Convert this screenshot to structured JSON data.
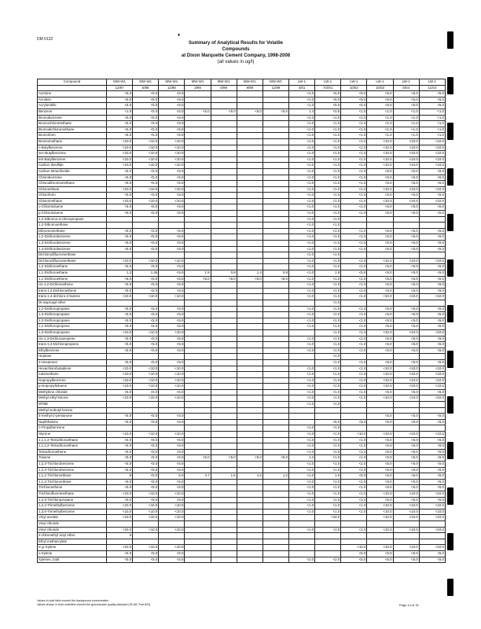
{
  "doc_id": "DM 0122",
  "title": {
    "line1": "Summary of Analytical Results for Volatile",
    "line2": "Compounds",
    "line3": "at Dixon Marquette Cement Company, 1998-2008",
    "line4": "(all values in ug/l)"
  },
  "table": {
    "headers": [
      [
        "Compound",
        "MW-W1",
        "MW-W1",
        "MW-W1",
        "MW-W1",
        "MW-W1",
        "MW-W1",
        "MW-W1",
        "LW-1",
        "LW-1",
        "LW-1",
        "LW-1",
        "LW-1",
        "LW-1"
      ],
      [
        "",
        "12/97",
        "5/98",
        "11/98",
        "3/99",
        "6/99",
        "9/99",
        "11/99",
        "4/01",
        "7/2/01",
        "10/02",
        "10/03",
        "6/04",
        "11/04"
      ]
    ],
    "rows": [
      [
        "Acetone",
        "<5.0",
        "<5.0",
        "<5.0",
        "",
        "",
        "",
        "",
        "<1.0",
        "<5.0",
        "<5.0",
        "<5.0",
        "<5.0",
        "<5.0"
      ],
      [
        "Acrolein",
        "<5.0",
        "<5.0",
        "<5.0",
        "",
        "",
        "",
        "",
        "<1.0",
        "<5.0",
        "<5.0",
        "<5.0",
        "<5.0",
        "<5.0"
      ],
      [
        "Acrylonitrile",
        "<5.0",
        "<5.0",
        "<5.0",
        "",
        "",
        "",
        "",
        "<1.0",
        "<5.0",
        "<5.0",
        "<5.0",
        "<5.0",
        "<5.0"
      ],
      [
        "Benzene",
        "<1.0",
        "<5.0",
        "<5.0",
        "<5.0",
        "<5.0",
        "<5.0",
        "<5.0",
        "1.4",
        "<0.5",
        "<1.0",
        "<1.0",
        "<1.0",
        "<1.0"
      ],
      [
        "Bromobenzene",
        "<5.0",
        "<5.0",
        "<5.0",
        "",
        "",
        "",
        "",
        "<1.0",
        "<1.0",
        "<1.0",
        "<1.0",
        "<1.0",
        "<1.0"
      ],
      [
        "Bromochloromethane",
        "<5.0",
        "<5.0",
        "<5.0",
        "",
        "",
        "",
        "",
        "<1.0",
        "<1.0",
        "<1.0",
        "<1.0",
        "<1.0",
        "<1.0"
      ],
      [
        "Bromodichloromethane",
        "<5.0",
        "<5.0",
        "<5.0",
        "",
        "",
        "",
        "",
        "<1.0",
        "<1.0",
        "<1.0",
        "<1.0",
        "<1.0",
        "<1.0"
      ],
      [
        "Bromoform",
        "<5.0",
        "<5.0",
        "<5.0",
        "",
        "",
        "",
        "",
        "<1.0",
        "<1.0",
        "<1.0",
        "<1.0",
        "<1.0",
        "<1.0"
      ],
      [
        "Bromomethane",
        "<10.0",
        "<10.0",
        "<10.0",
        "",
        "",
        "",
        "",
        "<1.0",
        "<1.0",
        "<1.0",
        "<10.0",
        "<10.0",
        "<10.0"
      ],
      [
        "n-Butylbenzene",
        "<10.0",
        "<10.0",
        "<10.0",
        "",
        "",
        "",
        "",
        "<1.0",
        "<1.0",
        "<1.0",
        "<10.0",
        "<10.0",
        "<10.0"
      ],
      [
        "sec-Butylbenzene",
        "<10.0",
        "<10.0",
        "<10.0",
        "",
        "",
        "",
        "",
        "<1.0",
        "<1.0",
        "<1.0",
        "<10.0",
        "<10.0",
        "<10.0"
      ],
      [
        "tert-Butylbenzene",
        "<10.0",
        "<10.0",
        "<10.0",
        "",
        "",
        "",
        "",
        "<1.0",
        "<1.0",
        "<1.0",
        "<10.0",
        "<10.0",
        "<10.0"
      ],
      [
        "Carbon disulfide",
        "<10.0",
        "<10.0",
        "<10.0",
        "",
        "",
        "",
        "",
        "<1.0",
        "<1.0",
        "<1.0",
        "<10.0",
        "<10.0",
        "<10.0"
      ],
      [
        "Carbon tetrachloride",
        "<5.0",
        "<5.0",
        "<5.0",
        "",
        "",
        "",
        "",
        "<1.0",
        "<1.0",
        "<1.0",
        "<5.0",
        "<5.0",
        "<5.0"
      ],
      [
        "Chlorobenzene",
        "<5.0",
        "<5.0",
        "<5.0",
        "",
        "",
        "",
        "",
        "<1.0",
        "<1.0",
        "<1.0",
        "<5.0",
        "<5.0",
        "<5.0"
      ],
      [
        "Chlorodibromomethane",
        "<5.0",
        "<5.0",
        "<5.0",
        "",
        "",
        "",
        "",
        "<1.0",
        "<1.0",
        "<1.0",
        "<5.0",
        "<5.0",
        "<5.0"
      ],
      [
        "Chloroethane",
        "<10.0",
        "<10.0",
        "<10.0",
        "",
        "",
        "",
        "",
        "<1.0",
        "<1.0",
        "<1.0",
        "<10.0",
        "<10.0",
        "<10.0"
      ],
      [
        "Chloroform",
        "<5.0",
        "<5.0",
        "<5.0",
        "",
        "",
        "",
        "",
        "<1.0",
        "<1.0",
        "<1.0",
        "<5.0",
        "<5.0",
        "<5.0"
      ],
      [
        "Chloromethane",
        "<10.0",
        "<10.0",
        "<10.0",
        "",
        "",
        "",
        "",
        "<1.0",
        "<1.0",
        "<1.0",
        "<10.0",
        "<10.0",
        "<10.0"
      ],
      [
        "o-Chlorotoluene",
        "<5.0",
        "<5.0",
        "<5.0",
        "",
        "",
        "",
        "",
        "<1.0",
        "<1.0",
        "<1.0",
        "<5.0",
        "<5.0",
        "<5.0"
      ],
      [
        "p-Chlorotoluene",
        "<5.0",
        "<5.0",
        "<5.0",
        "",
        "",
        "",
        "",
        "<1.0",
        "<1.0",
        "<1.0",
        "<5.0",
        "<5.0",
        "<5.0"
      ],
      [
        "1,2-Dibromo-3-chloropropane",
        "",
        "",
        "",
        "",
        "",
        "",
        "",
        "<1.0",
        "<1.0",
        "",
        "",
        "",
        ""
      ],
      [
        "1,2-Dibromoethane",
        "",
        "",
        "",
        "",
        "",
        "",
        "",
        "<1.0",
        "<1.0",
        "",
        "",
        "",
        ""
      ],
      [
        "Dibromomethane",
        "<5.0",
        "<5.0",
        "<5.0",
        "",
        "",
        "",
        "",
        "<1.0",
        "<1.0",
        "<1.0",
        "<5.0",
        "<5.0",
        "<5.0"
      ],
      [
        "1,2-Dichlorobenzene",
        "<5.0",
        "<5.0",
        "<5.0",
        "",
        "",
        "",
        "",
        "<1.0",
        "<1.0",
        "<1.0",
        "<5.0",
        "<5.0",
        "<5.0"
      ],
      [
        "1,3-Dichlorobenzene",
        "<5.0",
        "<5.0",
        "<5.0",
        "",
        "",
        "",
        "",
        "<1.0",
        "<1.0",
        "<1.0",
        "<5.0",
        "<5.0",
        "<5.0"
      ],
      [
        "1,4-Dichlorobenzene",
        "<5.0",
        "<5.0",
        "<5.0",
        "",
        "",
        "",
        "",
        "<1.0",
        "<1.0",
        "<1.0",
        "<5.0",
        "<5.0",
        "<5.0"
      ],
      [
        "Dichlorodifluoromethane",
        "",
        "",
        "",
        "",
        "",
        "",
        "",
        "<1.0",
        "<1.0",
        "",
        "",
        "",
        ""
      ],
      [
        "Dichlorodifluoromethane",
        "<10.0",
        "<10.0",
        "<10.0",
        "",
        "",
        "",
        "",
        "<1.0",
        "<1.0",
        "<1.0",
        "<10.0",
        "<10.0",
        "<10.0"
      ],
      [
        "1,2-Dichloroethane",
        "<5.0",
        "<5.0",
        "<5.0",
        "",
        "",
        "",
        "",
        "<1.0",
        "<1.0",
        "<1.0",
        "<5.0",
        "<5.0",
        "<5.0"
      ],
      [
        "1,1-Dichloroethane",
        "1.2",
        "1.36",
        "<5.0",
        "1.9",
        "0.8",
        "1.4",
        "0.8",
        "<1.0",
        "1.8",
        "<5.0",
        "<5.0",
        "<5.0",
        "<5.0"
      ],
      [
        "1,1-Dichloroethene",
        "<5.0",
        "<5.0",
        "<5.0",
        "<5.0",
        "<5.0",
        "<5.0",
        "<5.0",
        "<1.0",
        "<1.0",
        "<1.0",
        "<5.0",
        "<5.0",
        "<5.0"
      ],
      [
        "cis-1,2-Dichloroethene",
        "<5.0",
        "<5.0",
        "<5.0",
        "",
        "",
        "",
        "",
        "<1.0",
        "<1.0",
        "<1.0",
        "<5.0",
        "<5.0",
        "<5.0"
      ],
      [
        "trans-1,2-Dichloroethene",
        "<5.0",
        "<5.0",
        "<5.0",
        "",
        "",
        "",
        "",
        "<1.0",
        "<1.0",
        "<1.0",
        "<5.0",
        "<5.0",
        "<5.0"
      ],
      [
        "trans-1,4-dichloro-2-butene",
        "<10.0",
        "<10.0",
        "<10.0",
        "",
        "",
        "",
        "",
        "<1.0",
        "<1.0",
        "<1.0",
        "<10.0",
        "<10.0",
        "<10.0"
      ],
      [
        "Di-isopropyl ether",
        "",
        "",
        "",
        "",
        "",
        "",
        "",
        "",
        "<1.0",
        "",
        "",
        "",
        ""
      ],
      [
        "1,2-Dichloropropane",
        "<5.0",
        "<5.0",
        "<5.0",
        "",
        "",
        "",
        "",
        "<1.0",
        "<1.0",
        "<1.0",
        "<5.0",
        "<5.0",
        "<5.0"
      ],
      [
        "1,3-Dichloropropane",
        "<5.0",
        "<5.0",
        "<5.0",
        "",
        "",
        "",
        "",
        "<1.0",
        "<1.0",
        "<1.0",
        "<5.0",
        "<5.0",
        "<5.0"
      ],
      [
        "2,2-Dichloropropane",
        "<5.0",
        "<5.0",
        "<5.0",
        "",
        "",
        "",
        "",
        "<1.0",
        "<1.0",
        "<1.0",
        "<5.0",
        "<5.0",
        "<5.0"
      ],
      [
        "1,1-Dichloropropene",
        "<5.0",
        "<5.0",
        "<5.0",
        "",
        "",
        "",
        "",
        "<1.0",
        "<1.0",
        "<1.0",
        "<5.0",
        "<5.0",
        "<5.0"
      ],
      [
        "1,3-Dichloropropene",
        "<10.0",
        "<10.0",
        "<10.0",
        "",
        "",
        "",
        "",
        "",
        "<1.0",
        "<1.0",
        "<10.0",
        "<10.0",
        "<10.0"
      ],
      [
        "cis-1,3-Dichloropropene",
        "<5.0",
        "<5.0",
        "<5.0",
        "",
        "",
        "",
        "",
        "<1.0",
        "<1.0",
        "<1.0",
        "<5.0",
        "<5.0",
        "<5.0"
      ],
      [
        "trans-1,3-Dichloropropene",
        "<5.0",
        "<5.0",
        "<5.0",
        "",
        "",
        "",
        "",
        "<1.0",
        "<1.0",
        "<1.0",
        "<5.0",
        "<5.0",
        "<5.0"
      ],
      [
        "Ethylbenzene",
        "<5.0",
        "<5.0",
        "<5.0",
        "",
        "",
        "",
        "",
        "<1.0",
        "<1.0",
        "<1.0",
        "<5.0",
        "<5.0",
        "<5.0"
      ],
      [
        "Heptane",
        "",
        "",
        "",
        "",
        "",
        "",
        "",
        "",
        "<1.0",
        "",
        "",
        "",
        ""
      ],
      [
        "2-Hexanone",
        "<5.0",
        "<5.0",
        "<5.0",
        "",
        "",
        "",
        "",
        "",
        "<1.0",
        "<1.0",
        "<5.0",
        "<5.0",
        "<5.0"
      ],
      [
        "Hexachlorobutadiene",
        "<10.0",
        "<10.0",
        "<10.0",
        "",
        "",
        "",
        "",
        "<1.0",
        "<1.0",
        "<1.0",
        "<10.0",
        "<10.0",
        "<10.0"
      ],
      [
        "Iodomethane",
        "<10.0",
        "<10.0",
        "<10.0",
        "",
        "",
        "",
        "",
        "<1.0",
        "<1.0",
        "<1.0",
        "<10.0",
        "<10.0",
        "<10.0"
      ],
      [
        "Isopropylbenzene",
        "<10.0",
        "<10.0",
        "<10.0",
        "",
        "",
        "",
        "",
        "<1.0",
        "<1.0",
        "<1.0",
        "<10.0",
        "<10.0",
        "<10.0"
      ],
      [
        "p-Isopropyltoluene",
        "<10.0",
        "<10.0",
        "<10.0",
        "",
        "",
        "",
        "",
        "<1.0",
        "<1.0",
        "<1.0",
        "<10.0",
        "<10.0",
        "<10.0"
      ],
      [
        "Methylene chloride",
        "<5.0",
        "<5.0",
        "<5.0",
        "",
        "",
        "",
        "",
        "<1.0",
        "<1.0",
        "<1.0",
        "<5.0",
        "<5.0",
        "<5.0"
      ],
      [
        "Methyl ethyl ketone",
        "<10.0",
        "<10.0",
        "<10.0",
        "",
        "",
        "",
        "",
        "<1.0",
        "<1.0",
        "<1.0",
        "<10.0",
        "<10.0",
        "<10.0"
      ],
      [
        "MTBE",
        "",
        "",
        "",
        "",
        "",
        "",
        "",
        "<1.0",
        "<1.0",
        "",
        "",
        "",
        ""
      ],
      [
        "Methyl isobutyl ketone",
        "",
        "",
        "",
        "",
        "",
        "",
        "",
        "",
        "",
        "",
        "",
        "",
        ""
      ],
      [
        "4-methyl-2-pentanone",
        "<5.0",
        "<5.0",
        "<5.0",
        "",
        "",
        "",
        "",
        "",
        "",
        "",
        "<5.0",
        "<5.0",
        "<5.0"
      ],
      [
        "Naphthalene",
        "<5.0",
        "<5.0",
        "<5.0",
        "",
        "",
        "",
        "",
        "",
        "<5.0",
        "<5.0",
        "<5.0",
        "<5.0",
        "<5.0"
      ],
      [
        "n-Propylbenzene",
        "",
        "",
        "",
        "",
        "",
        "",
        "",
        "<1.0",
        "<1.0",
        "",
        "",
        "",
        ""
      ],
      [
        "Styrene",
        "<10.0",
        "<10.0",
        "<10.0",
        "",
        "",
        "",
        "",
        "<1.0",
        "<1.0",
        "<10.0",
        "<10.0",
        "<10.0",
        "<10.0"
      ],
      [
        "1,1,1,2-Tetrachloroethane",
        "<5.0",
        "<5.0",
        "<5.0",
        "",
        "",
        "",
        "",
        "<1.0",
        "<1.0",
        "<1.0",
        "<5.0",
        "<5.0",
        "<5.0"
      ],
      [
        "1,1,2,2-Tetrachloroethane",
        "<5.0",
        "<5.0",
        "<5.0",
        "",
        "",
        "",
        "",
        "<1.0",
        "<1.0",
        "<1.0",
        "<5.0",
        "<5.0",
        "<5.0"
      ],
      [
        "Tetrachloroethene",
        "<5.0",
        "<5.0",
        "<5.0",
        "",
        "",
        "",
        "",
        "<1.0",
        "<1.0",
        "<1.0",
        "<5.0",
        "<5.0",
        "<5.0"
      ],
      [
        "Toluene",
        "<5.0",
        "<5.0",
        "<5.0",
        "<5.0",
        "<5.0",
        "<5.0",
        "<5.0",
        "1.2",
        "<1.0",
        "<1.0",
        "<5.0",
        "<5.0",
        "<5.0"
      ],
      [
        "1,2,3-Trichlorobenzene",
        "<5.0",
        "<5.0",
        "<5.0",
        "",
        "",
        "",
        "",
        "<1.0",
        "<1.0",
        "<1.0",
        "<5.0",
        "<5.0",
        "<5.0"
      ],
      [
        "1,2,4-Trichlorobenzene",
        "<5.0",
        "<5.0",
        "<5.0",
        "",
        "",
        "",
        "",
        "<1.0",
        "<1.0",
        "<1.0",
        "<5.0",
        "<5.0",
        "<5.0"
      ],
      [
        "1,1,1-Trichloroethane",
        "8",
        "<5.0",
        "5.0",
        "4.7",
        "1.6",
        "1.6",
        "1.2",
        "<1.0",
        "1.0",
        "<5.0",
        "<5.0",
        "<5.0",
        "<5.0"
      ],
      [
        "1,1,2-Trichloroethane",
        "<5.0",
        "<5.0",
        "<5.0",
        "",
        "",
        "",
        "",
        "<1.0",
        "<1.0",
        "<1.0",
        "<5.0",
        "<5.0",
        "<5.0"
      ],
      [
        "Trichloroethene",
        "<5.0",
        "<5.0",
        "<5.0",
        "",
        "",
        "",
        "",
        "<1.0",
        "<1.0",
        "<1.0",
        "<5.0",
        "<5.0",
        "<5.0"
      ],
      [
        "Trichlorofluoromethane",
        "<10.0",
        "<10.0",
        "<10.0",
        "",
        "",
        "",
        "",
        "<1.0",
        "<1.0",
        "<1.0",
        "<10.0",
        "<10.0",
        "<10.0"
      ],
      [
        "1,2,3-Trichloropropane",
        "<5.0",
        "<5.0",
        "<5.0",
        "",
        "",
        "",
        "",
        "<1.0",
        "<1.0",
        "<1.0",
        "<5.0",
        "<5.0",
        "<5.0"
      ],
      [
        "1,2,4-Trimethylbenzene",
        "<10.0",
        "<10.0",
        "<10.0",
        "",
        "",
        "",
        "",
        "<1.0",
        "<1.0",
        "<1.0",
        "<10.0",
        "<10.0",
        "<10.0"
      ],
      [
        "1,3,5-Trimethylbenzene",
        "<10.0",
        "<10.0",
        "<10.0",
        "",
        "",
        "",
        "",
        "<1.0",
        "<1.0",
        "<1.0",
        "<10.0",
        "<10.0",
        "<10.0"
      ],
      [
        "Vinyl acetate",
        "<10.0",
        "<10.0",
        "<10.0",
        "",
        "",
        "",
        "",
        "",
        "<10.0",
        "",
        "<10.0",
        "<10.0",
        "<10.0"
      ],
      [
        "Vinyl chloride",
        "",
        "",
        "",
        "",
        "",
        "",
        "",
        "",
        "",
        "",
        "",
        "",
        ""
      ],
      [
        "Vinyl chloride",
        "<10.0",
        "<10.0",
        "<10.0",
        "",
        "",
        "",
        "",
        "<1.0",
        "<1.0",
        "<1.0",
        "<10.0",
        "<10.0",
        "<10.0"
      ],
      [
        "2-chloroethyl vinyl ether",
        "5",
        "",
        "",
        "",
        "",
        "",
        "",
        "",
        "",
        "",
        "",
        "",
        ""
      ],
      [
        "Ethyl methacrylate",
        "",
        "",
        "",
        "",
        "",
        "",
        "",
        "",
        "",
        "",
        "",
        "",
        ""
      ],
      [
        "m,p-Xylene",
        "<10.0",
        "<10.0",
        "<10.0",
        "",
        "",
        "",
        "",
        "",
        "",
        "<10.0",
        "<10.0",
        "<10.0",
        "<10.0"
      ],
      [
        "o-Xylene",
        "<5.0",
        "<5.0",
        "<5.0",
        "",
        "",
        "",
        "",
        "",
        "",
        "<5.0",
        "<5.0",
        "<5.0",
        "<5.0"
      ],
      [
        "Xylenes, total",
        "<5.0",
        "<5.0",
        "<5.0",
        "",
        "",
        "",
        "",
        "<2.0",
        "<2.0",
        "<5.0",
        "<5.0",
        "<5.0",
        "<5.0"
      ]
    ]
  },
  "footer": {
    "note1": "Values in bold italic exceed the background concentration",
    "note2": "Values shown in bold underline exceed the groundwater quality standard (35 IAC Part 620)",
    "page": "Page 14 of 31"
  }
}
